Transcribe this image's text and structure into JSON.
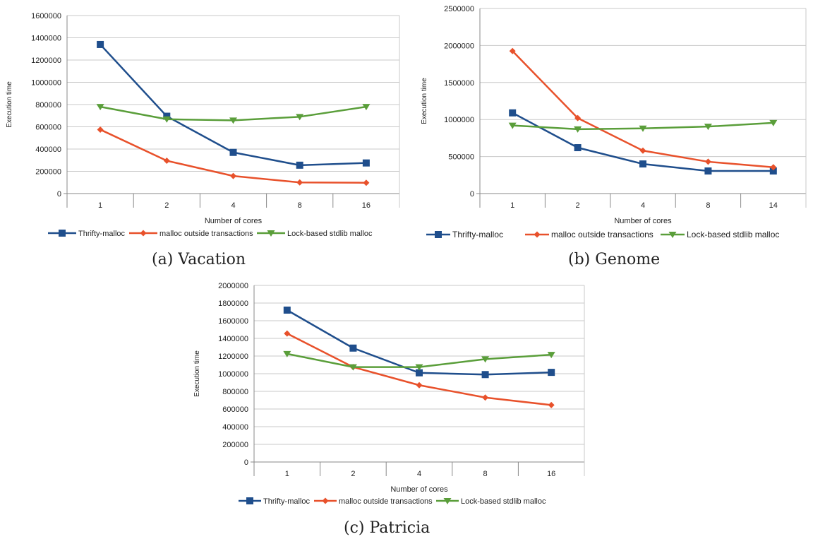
{
  "colors": {
    "thrifty": "#1f4e8c",
    "outside": "#e8512b",
    "lock": "#5a9e3a",
    "grid": "#c8c8c8",
    "axis": "#888888"
  },
  "chart_data": [
    {
      "type": "line",
      "caption": "(a) Vacation",
      "xlabel": "Number of cores",
      "ylabel": "Execution time",
      "categories": [
        "1",
        "2",
        "4",
        "8",
        "16"
      ],
      "ylim": [
        0,
        1600000
      ],
      "yticks": [
        0,
        200000,
        400000,
        600000,
        800000,
        1000000,
        1200000,
        1400000,
        1600000
      ],
      "grid": true,
      "legend": "bottom",
      "series": [
        {
          "name": "Thrifty-malloc",
          "marker": "square",
          "values": [
            1340000,
            695000,
            370000,
            255000,
            275000
          ]
        },
        {
          "name": "malloc outside transactions",
          "marker": "diamond",
          "values": [
            575000,
            295000,
            158000,
            100000,
            97000
          ]
        },
        {
          "name": "Lock-based stdlib malloc",
          "marker": "triangle",
          "values": [
            780000,
            668000,
            658000,
            690000,
            780000
          ]
        }
      ]
    },
    {
      "type": "line",
      "caption": "(b) Genome",
      "xlabel": "Number of cores",
      "ylabel": "Execution time",
      "categories": [
        "1",
        "2",
        "4",
        "8",
        "14"
      ],
      "ylim": [
        0,
        2500000
      ],
      "yticks": [
        0,
        500000,
        1000000,
        1500000,
        2000000,
        2500000
      ],
      "grid": true,
      "legend": "bottom",
      "series": [
        {
          "name": "Thrifty-malloc",
          "marker": "square",
          "values": [
            1090000,
            620000,
            400000,
            305000,
            305000
          ]
        },
        {
          "name": "malloc outside transactions",
          "marker": "diamond",
          "values": [
            1925000,
            1020000,
            580000,
            430000,
            355000
          ]
        },
        {
          "name": "Lock-based stdlib malloc",
          "marker": "triangle",
          "values": [
            920000,
            870000,
            880000,
            905000,
            955000
          ]
        }
      ]
    },
    {
      "type": "line",
      "caption": "(c) Patricia",
      "xlabel": "Number of cores",
      "ylabel": "Execution time",
      "categories": [
        "1",
        "2",
        "4",
        "8",
        "16"
      ],
      "ylim": [
        0,
        2000000
      ],
      "yticks": [
        0,
        200000,
        400000,
        600000,
        800000,
        1000000,
        1200000,
        1400000,
        1600000,
        1800000,
        2000000
      ],
      "grid": true,
      "legend": "bottom",
      "series": [
        {
          "name": "Thrifty-malloc",
          "marker": "square",
          "values": [
            1720000,
            1290000,
            1010000,
            990000,
            1015000
          ]
        },
        {
          "name": "malloc outside transactions",
          "marker": "diamond",
          "values": [
            1455000,
            1075000,
            870000,
            730000,
            645000
          ]
        },
        {
          "name": "Lock-based stdlib malloc",
          "marker": "triangle",
          "values": [
            1225000,
            1075000,
            1075000,
            1165000,
            1215000
          ]
        }
      ]
    }
  ]
}
